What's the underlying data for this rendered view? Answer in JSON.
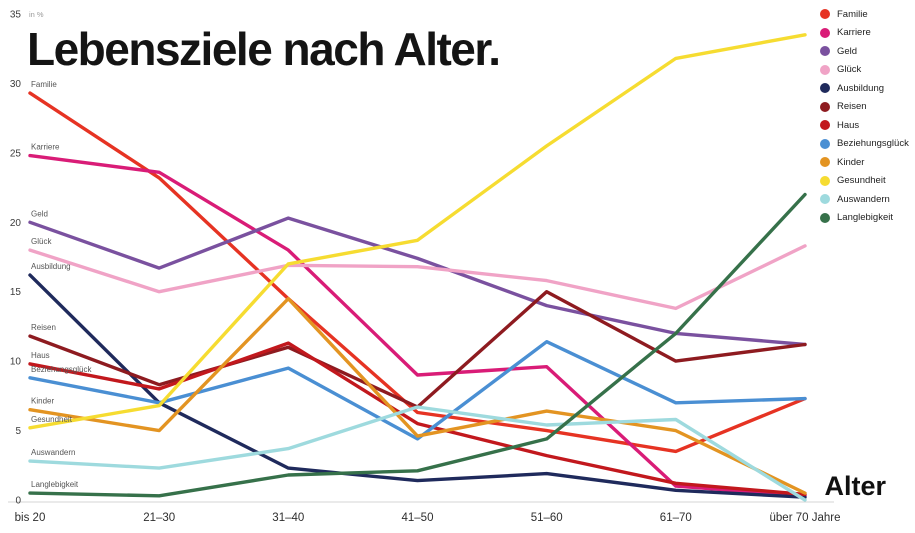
{
  "page": {
    "background": "#ffffff"
  },
  "chart_data": {
    "type": "line",
    "title": "Lebensziele nach Alter.",
    "ylabel": "in %",
    "xlabel": "Alter",
    "ylim": [
      0,
      35
    ],
    "yticks": [
      0,
      5,
      10,
      15,
      20,
      25,
      30,
      35
    ],
    "grid": false,
    "legend_position": "top-right",
    "categories": [
      "bis 20",
      "21–30",
      "31–40",
      "41–50",
      "51–60",
      "61–70",
      "über 70 Jahre"
    ],
    "series": [
      {
        "name": "Familie",
        "color": "#e63323",
        "values": [
          29.3,
          23.2,
          14.5,
          6.3,
          5.0,
          3.5,
          7.3
        ]
      },
      {
        "name": "Karriere",
        "color": "#d91c77",
        "values": [
          24.8,
          23.6,
          18.0,
          9.0,
          9.6,
          1.0,
          0.3
        ]
      },
      {
        "name": "Geld",
        "color": "#7a519f",
        "values": [
          20.0,
          16.7,
          20.3,
          17.4,
          14.0,
          12.0,
          11.2
        ]
      },
      {
        "name": "Glück",
        "color": "#f0a3c6",
        "values": [
          18.0,
          15.0,
          16.9,
          16.8,
          15.8,
          13.8,
          18.3
        ]
      },
      {
        "name": "Ausbildung",
        "color": "#1f2a5c",
        "values": [
          16.2,
          7.0,
          2.3,
          1.4,
          1.9,
          0.7,
          0.2
        ]
      },
      {
        "name": "Reisen",
        "color": "#8e1b20",
        "values": [
          11.8,
          8.3,
          11.0,
          6.7,
          15.0,
          10.0,
          11.2
        ]
      },
      {
        "name": "Haus",
        "color": "#c2181d",
        "values": [
          9.8,
          8.0,
          11.3,
          5.5,
          3.2,
          1.2,
          0.4
        ]
      },
      {
        "name": "Beziehungsglück",
        "color": "#4a8fd3",
        "values": [
          8.8,
          7.0,
          9.5,
          4.4,
          11.4,
          7.0,
          7.3
        ]
      },
      {
        "name": "Kinder",
        "color": "#e39422",
        "values": [
          6.5,
          5.0,
          14.5,
          4.6,
          6.4,
          5.0,
          0.5
        ]
      },
      {
        "name": "Gesundheit",
        "color": "#f6dc31",
        "values": [
          5.2,
          6.8,
          17.0,
          18.7,
          25.5,
          31.8,
          33.5
        ]
      },
      {
        "name": "Auswandern",
        "color": "#9edade",
        "values": [
          2.8,
          2.3,
          3.7,
          6.7,
          5.4,
          5.8,
          0.0
        ]
      },
      {
        "name": "Langlebigkeit",
        "color": "#36714a",
        "values": [
          0.5,
          0.3,
          1.8,
          2.1,
          4.4,
          12.0,
          22.0
        ]
      }
    ]
  }
}
